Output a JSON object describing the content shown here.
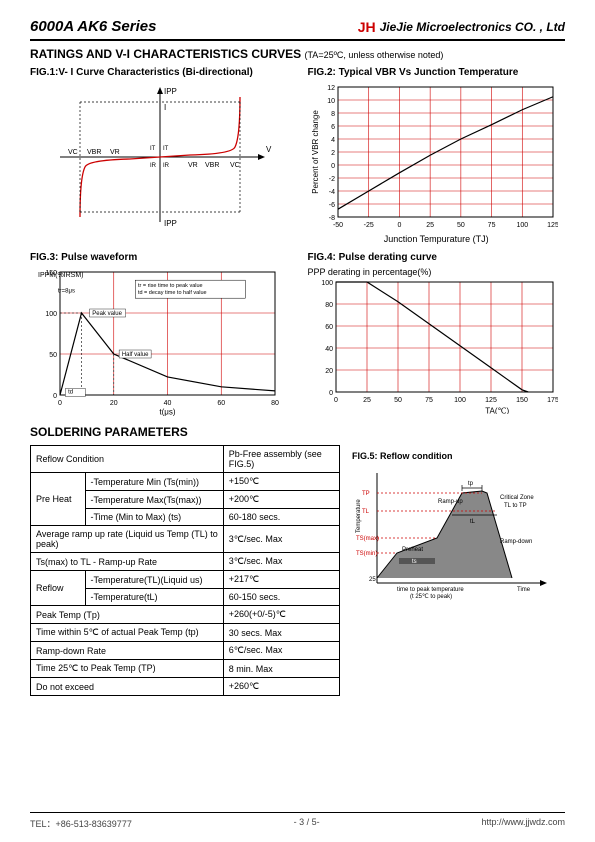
{
  "header": {
    "product": "6000A   AK6 Series",
    "logo": "JH",
    "company": "JieJie Microelectronics CO. , Ltd"
  },
  "section1": {
    "title": "RATINGS AND V-I CHARACTERISTICS CURVES",
    "condition": "(TA=25ºC, unless otherwise noted)"
  },
  "fig1": {
    "title": "FIG.1:V- I Curve Characteristics (Bi-directional)",
    "labels": {
      "ipp_top": "IPP",
      "ipp_bot": "IPP",
      "v": "V",
      "i": "I",
      "vc": "VC",
      "vbr": "VBR",
      "vr": "VR",
      "it": "IT",
      "ir": "IR"
    }
  },
  "fig2": {
    "title": "FIG.2: Typical VBR Vs Junction Temperature",
    "ylabel": "Percent of VBR change",
    "xlabel": "Junction Tempurature (TJ)",
    "xlim": [
      -50,
      125
    ],
    "xtick_step": 25,
    "ylim": [
      -8,
      12
    ],
    "ytick_step": 2,
    "grid_color": "#d00000",
    "line_color": "#000000",
    "data": [
      [
        -50,
        -6.8
      ],
      [
        -25,
        -4
      ],
      [
        0,
        -1.2
      ],
      [
        25,
        1.5
      ],
      [
        50,
        4
      ],
      [
        75,
        6.2
      ],
      [
        100,
        8.5
      ],
      [
        125,
        10.5
      ]
    ]
  },
  "fig3": {
    "title": "FIG.3: Pulse waveform",
    "ylabel": "IPPM(%IRSM)",
    "xlabel": "t(μs)",
    "xlim": [
      0,
      80
    ],
    "xtick_step": 20,
    "ylim": [
      0,
      150
    ],
    "ytick_step": 50,
    "grid_color": "#d00000",
    "line_color": "#000000",
    "notes": {
      "tr": "tr = rise time to peak value",
      "td": "td = decay time to half value",
      "peak": "Peak value",
      "half": "Half value"
    },
    "data": [
      [
        0,
        0
      ],
      [
        8,
        100
      ],
      [
        20,
        50
      ],
      [
        40,
        22
      ],
      [
        60,
        10
      ],
      [
        80,
        5
      ]
    ]
  },
  "fig4": {
    "title": "FIG.4: Pulse derating curve",
    "ylabel": "PPP derating in percentage(%)",
    "xlabel": "TA(℃)",
    "xlim": [
      0,
      175
    ],
    "xtick_step": 25,
    "ylim": [
      0,
      100
    ],
    "ytick_step": 20,
    "grid_color": "#d00000",
    "line_color": "#000000",
    "data": [
      [
        0,
        100
      ],
      [
        25,
        100
      ],
      [
        50,
        82
      ],
      [
        75,
        62
      ],
      [
        100,
        42
      ],
      [
        125,
        22
      ],
      [
        150,
        2
      ],
      [
        155,
        0
      ]
    ]
  },
  "fig5": {
    "title": "FIG.5: Reflow condition",
    "labels": {
      "tp": "tp",
      "critical": "Critical Zone TL to TP",
      "rampup": "Ramp-up",
      "rampdown": "Ramp-down",
      "preheat": "Preheat",
      "ts": "ts",
      "tl": "tL",
      "time_to_peak": "time to peak temperature (t 25℃ to peak)",
      "time": "Time",
      "tsmax": "TS(max)",
      "tsmin": "TS(min)",
      "tp_label": "TP",
      "tl_label": "TL",
      "temp25": "25",
      "temperature": "Temperature"
    }
  },
  "section2": {
    "title": "SOLDERING PARAMETERS"
  },
  "table": {
    "header_col1": "Reflow Condition",
    "header_col2": "Pb-Free assembly (see FIG.5)",
    "rows": [
      [
        "Pre Heat",
        "-Temperature Min (Ts(min))",
        "+150℃"
      ],
      [
        "",
        "-Temperature Max(Ts(max))",
        "+200℃"
      ],
      [
        "",
        "-Time (Min to Max) (ts)",
        "60-180 secs."
      ],
      [
        "colspan",
        "Average ramp up rate (Liquid us Temp (TL) to peak)",
        "3℃/sec. Max"
      ],
      [
        "colspan",
        "Ts(max) to TL - Ramp-up Rate",
        "3℃/sec. Max"
      ],
      [
        "Reflow",
        "-Temperature(TL)(Liquid us)",
        "+217℃"
      ],
      [
        "",
        "-Temperature(tL)",
        "60-150 secs."
      ],
      [
        "colspan",
        "Peak Temp (Tp)",
        "+260(+0/-5)℃"
      ],
      [
        "colspan",
        "Time within 5℃ of actual Peak Temp (tp)",
        "30 secs. Max"
      ],
      [
        "colspan",
        "Ramp-down Rate",
        "6℃/sec. Max"
      ],
      [
        "colspan",
        "Time 25℃ to Peak Temp (TP)",
        "8 min. Max"
      ],
      [
        "colspan",
        "Do not exceed",
        "+260℃"
      ]
    ]
  },
  "footer": {
    "tel": "TEL：+86-513-83639777",
    "page": "- 3 / 5-",
    "url": "http://www.jjwdz.com"
  }
}
